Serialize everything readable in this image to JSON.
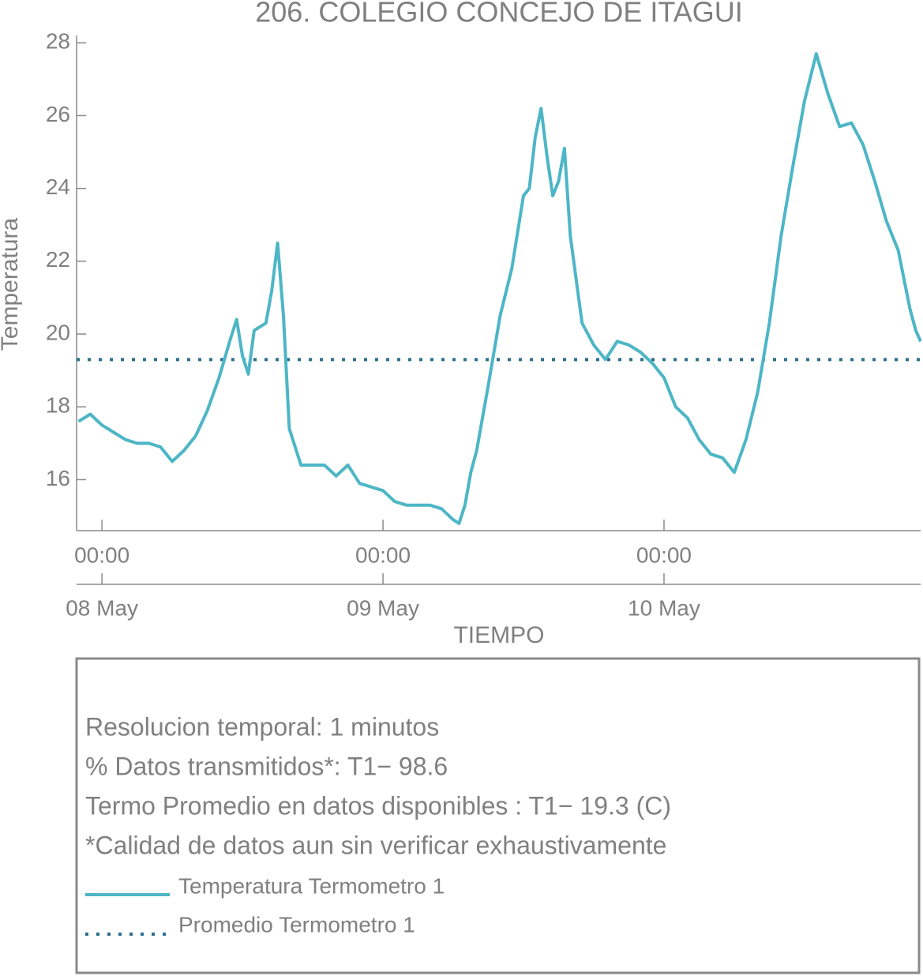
{
  "chart_data": {
    "type": "line",
    "title": "206. COLEGIO CONCEJO DE ITAGUI",
    "xlabel": "TIEMPO",
    "ylabel": "Temperatura",
    "x": [
      "07 May 22:00",
      "07 May 23:00",
      "08 May 00:00",
      "08 May 01:00",
      "08 May 02:00",
      "08 May 03:00",
      "08 May 04:00",
      "08 May 05:00",
      "08 May 06:00",
      "08 May 07:00",
      "08 May 08:00",
      "08 May 09:00",
      "08 May 10:00",
      "08 May 11:00",
      "08 May 11:30",
      "08 May 12:00",
      "08 May 12:30",
      "08 May 13:00",
      "08 May 14:00",
      "08 May 14:30",
      "08 May 15:00",
      "08 May 15:30",
      "08 May 16:00",
      "08 May 17:00",
      "08 May 18:00",
      "08 May 19:00",
      "08 May 20:00",
      "08 May 21:00",
      "08 May 22:00",
      "08 May 23:00",
      "09 May 00:00",
      "09 May 01:00",
      "09 May 02:00",
      "09 May 03:00",
      "09 May 04:00",
      "09 May 05:00",
      "09 May 06:00",
      "09 May 06:30",
      "09 May 07:00",
      "09 May 07:30",
      "09 May 08:00",
      "09 May 09:00",
      "09 May 10:00",
      "09 May 11:00",
      "09 May 12:00",
      "09 May 12:30",
      "09 May 13:00",
      "09 May 13:30",
      "09 May 14:00",
      "09 May 14:30",
      "09 May 15:00",
      "09 May 15:30",
      "09 May 16:00",
      "09 May 17:00",
      "09 May 18:00",
      "09 May 19:00",
      "09 May 20:00",
      "09 May 21:00",
      "09 May 22:00",
      "09 May 23:00",
      "10 May 00:00",
      "10 May 01:00",
      "10 May 02:00",
      "10 May 03:00",
      "10 May 04:00",
      "10 May 05:00",
      "10 May 06:00",
      "10 May 07:00",
      "10 May 08:00",
      "10 May 09:00",
      "10 May 10:00",
      "10 May 11:00",
      "10 May 12:00",
      "10 May 13:00",
      "10 May 14:00",
      "10 May 15:00",
      "10 May 16:00",
      "10 May 17:00",
      "10 May 18:00",
      "10 May 19:00",
      "10 May 20:00",
      "10 May 21:00",
      "10 May 21:30",
      "10 May 21:55"
    ],
    "series": [
      {
        "name": "Temperatura Termometro 1",
        "color": "#4db6c6",
        "values": [
          17.6,
          17.8,
          17.5,
          17.3,
          17.1,
          17.0,
          17.0,
          16.9,
          16.5,
          16.8,
          17.2,
          17.9,
          18.8,
          19.9,
          20.4,
          19.4,
          18.9,
          20.1,
          20.3,
          21.2,
          22.5,
          20.5,
          17.4,
          16.4,
          16.4,
          16.4,
          16.1,
          16.4,
          15.9,
          15.8,
          15.7,
          15.4,
          15.3,
          15.3,
          15.3,
          15.2,
          14.9,
          14.8,
          15.3,
          16.2,
          16.8,
          18.6,
          20.5,
          21.8,
          23.8,
          24.0,
          25.4,
          26.2,
          24.9,
          23.8,
          24.2,
          25.1,
          22.7,
          20.3,
          19.7,
          19.3,
          19.8,
          19.7,
          19.5,
          19.2,
          18.8,
          18.0,
          17.7,
          17.1,
          16.7,
          16.6,
          16.2,
          17.1,
          18.4,
          20.3,
          22.7,
          24.6,
          26.4,
          27.7,
          26.6,
          25.7,
          25.8,
          25.2,
          24.2,
          23.1,
          22.3,
          20.7,
          20.1,
          19.8
        ]
      }
    ],
    "average": {
      "name": "Promedio Termometro 1",
      "color": "#2b6f8c",
      "value": 19.3
    },
    "xlim": [
      "07 May 21:50",
      "10 May 21:55"
    ],
    "xticks": [
      {
        "value": "08 May 00:00",
        "label": "00:00"
      },
      {
        "value": "09 May 00:00",
        "label": "00:00"
      },
      {
        "value": "10 May 00:00",
        "label": "00:00"
      }
    ],
    "xticks_secondary": [
      {
        "value": "08 May 00:00",
        "label": "08 May"
      },
      {
        "value": "09 May 00:00",
        "label": "09 May"
      },
      {
        "value": "10 May 00:00",
        "label": "10 May"
      }
    ],
    "ylim": [
      14.6,
      28.2
    ],
    "yticks": [
      16,
      18,
      20,
      22,
      24,
      26,
      28
    ],
    "info": [
      "Resolucion temporal: 1 minutos",
      "% Datos transmitidos*: T1− 98.6",
      "Termo Promedio en datos disponibles : T1− 19.3 (C)",
      "*Calidad de datos aun sin verificar exhaustivamente"
    ]
  }
}
